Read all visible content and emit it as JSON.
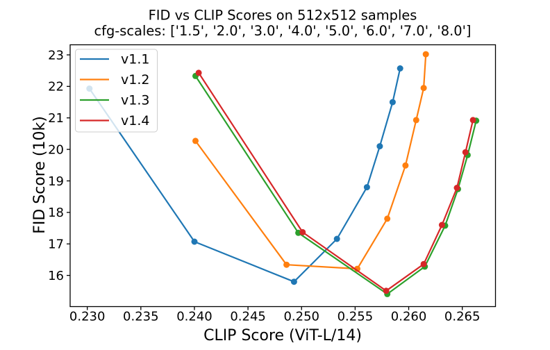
{
  "chart_data": {
    "type": "line",
    "title": "FID vs CLIP Scores on 512x512 samples",
    "subtitle": "cfg-scales: ['1.5', '2.0', '3.0', '4.0', '5.0', '6.0', '7.0', '8.0']",
    "xlabel": "CLIP Score (ViT-L/14)",
    "ylabel": "FID Score (10k)",
    "cfg_scales": [
      "1.5",
      "2.0",
      "3.0",
      "4.0",
      "5.0",
      "6.0",
      "7.0",
      "8.0"
    ],
    "grid": false,
    "legend_position": "upper left",
    "marker": "circle",
    "xlim": [
      0.2284,
      0.2681
    ],
    "ylim": [
      15.01,
      23.32
    ],
    "xticks": [
      0.23,
      0.235,
      0.24,
      0.245,
      0.25,
      0.255,
      0.26,
      0.265
    ],
    "yticks": [
      16,
      17,
      18,
      19,
      20,
      21,
      22,
      23
    ],
    "axis_color": "#000000",
    "legend_border_color": "#cccccc",
    "series": [
      {
        "name": "v1.1",
        "color": "#1f77b4",
        "points": [
          [
            0.2302,
            21.93
          ],
          [
            0.24,
            17.07
          ],
          [
            0.2493,
            15.8
          ],
          [
            0.2533,
            17.16
          ],
          [
            0.2561,
            18.8
          ],
          [
            0.2573,
            20.1
          ],
          [
            0.2585,
            21.5
          ],
          [
            0.2592,
            22.57
          ]
        ]
      },
      {
        "name": "v1.2",
        "color": "#ff7f0e",
        "points": [
          [
            0.2401,
            20.27
          ],
          [
            0.2486,
            16.34
          ],
          [
            0.2552,
            16.21
          ],
          [
            0.258,
            17.8
          ],
          [
            0.2597,
            19.49
          ],
          [
            0.2607,
            20.93
          ],
          [
            0.2614,
            21.95
          ],
          [
            0.2616,
            23.02
          ]
        ]
      },
      {
        "name": "v1.3",
        "color": "#2ca02c",
        "points": [
          [
            0.2401,
            22.33
          ],
          [
            0.2497,
            17.35
          ],
          [
            0.258,
            15.41
          ],
          [
            0.2615,
            16.28
          ],
          [
            0.2634,
            17.58
          ],
          [
            0.2646,
            18.74
          ],
          [
            0.2655,
            19.82
          ],
          [
            0.2663,
            20.91
          ]
        ]
      },
      {
        "name": "v1.4",
        "color": "#d62728",
        "points": [
          [
            0.2404,
            22.43
          ],
          [
            0.2501,
            17.37
          ],
          [
            0.2579,
            15.51
          ],
          [
            0.2614,
            16.36
          ],
          [
            0.2631,
            17.6
          ],
          [
            0.2645,
            18.78
          ],
          [
            0.2653,
            19.91
          ],
          [
            0.266,
            20.93
          ]
        ]
      }
    ]
  }
}
